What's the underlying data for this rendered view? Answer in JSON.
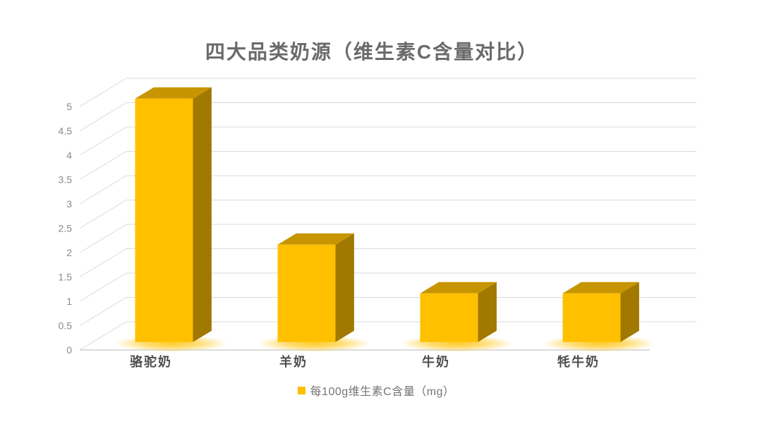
{
  "chart_data": {
    "type": "bar",
    "variant": "3d-column",
    "title": "四大品类奶源（维生素C含量对比）",
    "categories": [
      "骆驼奶",
      "羊奶",
      "牛奶",
      "牦牛奶"
    ],
    "series": [
      {
        "name": "每100g维生素C含量（mg）",
        "values": [
          5,
          2,
          1,
          1
        ]
      }
    ],
    "ylim": [
      0,
      5
    ],
    "ytick_step": 0.5,
    "ytick_labels": [
      "0",
      "0.5",
      "1",
      "1.5",
      "2",
      "2.5",
      "3",
      "3.5",
      "4",
      "4.5",
      "5"
    ],
    "grid": true,
    "legend_position": "bottom",
    "colors": {
      "bar_front": "#FFC000",
      "bar_top": "#C79500",
      "bar_side": "#A17800",
      "glow": "#FFC81E",
      "gridline": "#DBDBDB",
      "axis_line": "#C8C8C8",
      "title_text": "#6A6A6A",
      "tick_text": "#8A8A8A",
      "category_text": "#4D4D4D",
      "legend_text": "#757575",
      "background": "#FFFFFF"
    }
  }
}
